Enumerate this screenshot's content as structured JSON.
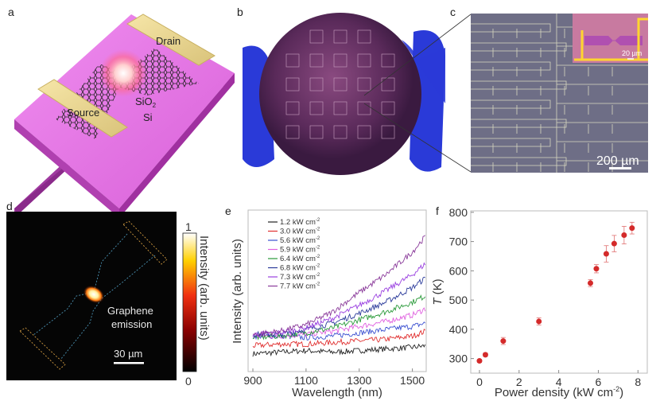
{
  "panels": {
    "a": {
      "letter": "a",
      "drain_label": "Drain",
      "source_label": "Source",
      "sio2_label": "SiO",
      "sio2_sub": "2",
      "si_label": "Si"
    },
    "b": {
      "letter": "b"
    },
    "c": {
      "letter": "c",
      "inset_scale": "20 µm",
      "scale": "200 µm"
    },
    "d": {
      "letter": "d",
      "annotation_line1": "Graphene",
      "annotation_line2": "emission",
      "scale": "30 µm",
      "colorbar_label": "Intensity (arb. units)",
      "colorbar_max": "1",
      "colorbar_min": "0"
    }
  },
  "chart_data": [
    {
      "panel": "e",
      "letter": "e",
      "type": "line",
      "xlabel": "Wavelength (nm)",
      "ylabel": "Intensity (arb. units)",
      "xlim": [
        882,
        1552
      ],
      "ylim": [
        0,
        1
      ],
      "xticks": [
        "900",
        "1100",
        "1300",
        "1500"
      ],
      "legend_position": "top-left",
      "grid": false,
      "x": [
        900,
        1000,
        1100,
        1200,
        1300,
        1400,
        1500,
        1550
      ],
      "series": [
        {
          "name": "1.2 kW cm",
          "sup": "-2",
          "color": "#222222",
          "values": [
            0.11,
            0.12,
            0.13,
            0.12,
            0.13,
            0.14,
            0.15,
            0.16
          ]
        },
        {
          "name": "3.0 kW cm",
          "sup": "-2",
          "color": "#e03030",
          "values": [
            0.16,
            0.17,
            0.17,
            0.18,
            0.19,
            0.2,
            0.22,
            0.25
          ]
        },
        {
          "name": "5.6 kW cm",
          "sup": "-2",
          "color": "#3a4fd0",
          "values": [
            0.22,
            0.22,
            0.21,
            0.22,
            0.24,
            0.26,
            0.28,
            0.3
          ]
        },
        {
          "name": "5.9 kW cm",
          "sup": "-2",
          "color": "#e060e0",
          "values": [
            0.22,
            0.22,
            0.23,
            0.25,
            0.28,
            0.31,
            0.35,
            0.39
          ]
        },
        {
          "name": "6.4 kW cm",
          "sup": "-2",
          "color": "#2a9a3a",
          "values": [
            0.21,
            0.22,
            0.24,
            0.27,
            0.32,
            0.37,
            0.43,
            0.47
          ]
        },
        {
          "name": "6.8 kW cm",
          "sup": "-2",
          "color": "#2a3a9a",
          "values": [
            0.23,
            0.23,
            0.26,
            0.3,
            0.36,
            0.43,
            0.52,
            0.58
          ]
        },
        {
          "name": "7.3 kW cm",
          "sup": "-2",
          "color": "#9a40e0",
          "values": [
            0.23,
            0.24,
            0.27,
            0.33,
            0.41,
            0.5,
            0.6,
            0.67
          ]
        },
        {
          "name": "7.7 kW cm",
          "sup": "-2",
          "color": "#8a3a9a",
          "values": [
            0.23,
            0.25,
            0.29,
            0.37,
            0.49,
            0.6,
            0.74,
            0.84
          ]
        }
      ]
    },
    {
      "panel": "f",
      "letter": "f",
      "type": "scatter",
      "xlabel": "Power density (kW cm",
      "xlabel_sup": "-2",
      "xlabel_end": ")",
      "ylabel_italic": "T",
      "ylabel": " (K)",
      "xlim": [
        -0.44,
        8.47
      ],
      "ylim": [
        250,
        805
      ],
      "xticks": [
        "0",
        "2",
        "4",
        "6",
        "8"
      ],
      "yticks": [
        "300",
        "400",
        "500",
        "600",
        "700",
        "800"
      ],
      "grid": false,
      "color": "#d42a2a",
      "points": [
        {
          "x": 0.0,
          "y": 292,
          "err": 5
        },
        {
          "x": 0.3,
          "y": 313,
          "err": 6
        },
        {
          "x": 1.2,
          "y": 360,
          "err": 12
        },
        {
          "x": 3.0,
          "y": 427,
          "err": 12
        },
        {
          "x": 5.6,
          "y": 558,
          "err": 12
        },
        {
          "x": 5.9,
          "y": 607,
          "err": 14
        },
        {
          "x": 6.4,
          "y": 658,
          "err": 28
        },
        {
          "x": 6.8,
          "y": 693,
          "err": 28
        },
        {
          "x": 7.3,
          "y": 722,
          "err": 30
        },
        {
          "x": 7.7,
          "y": 746,
          "err": 20
        }
      ]
    }
  ]
}
